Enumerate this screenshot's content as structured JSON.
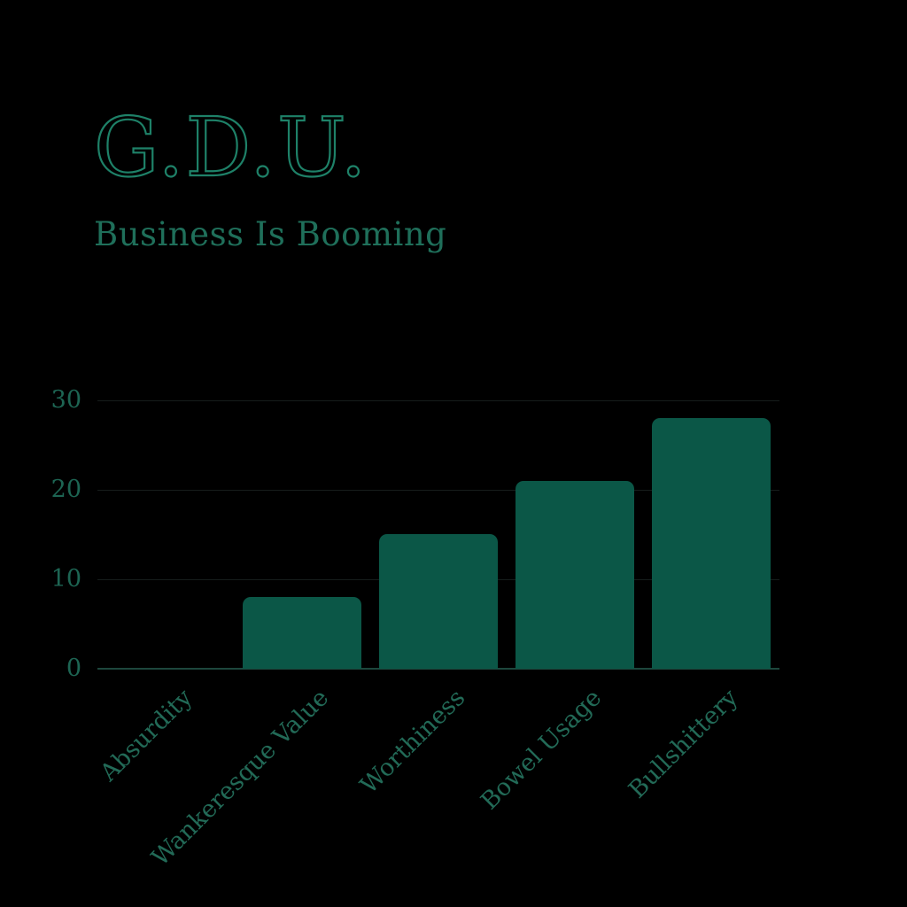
{
  "header": {
    "title": "G.D.U.",
    "subtitle": "Business Is Booming"
  },
  "chart_data": {
    "type": "bar",
    "title": "G.D.U.",
    "subtitle": "Business Is Booming",
    "categories": [
      "Absurdity",
      "Wankeresque Value",
      "Worthiness",
      "Bowel Usage",
      "Bullshittery"
    ],
    "values": [
      0,
      8,
      15,
      21,
      28
    ],
    "yticks": [
      0,
      10,
      20,
      30
    ],
    "ylim": [
      0,
      30
    ],
    "xlabel": "",
    "ylabel": "",
    "grid": "horizontal",
    "legend": "none",
    "x_tick_rotation_deg": 45,
    "colors": {
      "background": "#000000",
      "bar_fill": "#0b5747",
      "title_outline": "#1e8168",
      "subtitle_text": "#1f6f5a",
      "ytick_text": "#1d6553",
      "xtick_text": "#226a57",
      "gridline": "#161d1b",
      "baseline": "#1d473d"
    }
  }
}
